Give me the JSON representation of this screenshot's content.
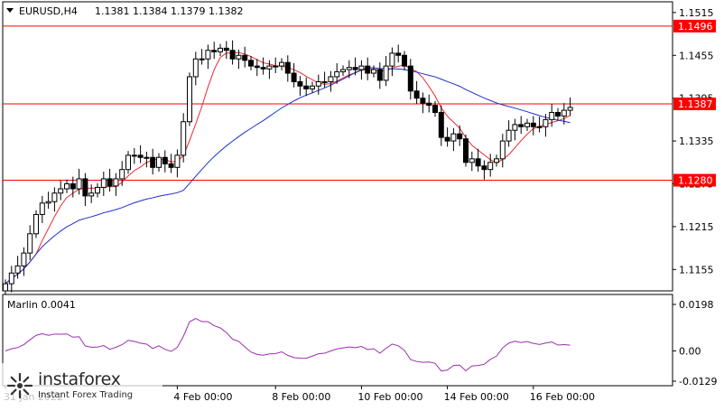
{
  "chart_header": {
    "symbol": "EURUSD,H4",
    "ohlc": "1.1381 1.1384 1.1379 1.1382"
  },
  "price_axis": {
    "ticks": [
      "1.1515",
      "1.1455",
      "1.1395",
      "1.1335",
      "1.1275",
      "1.1215",
      "1.1155"
    ],
    "labels": [
      {
        "text": "1.1496",
        "color": "#ff0000"
      },
      {
        "text": "1.1387",
        "color": "#ff0000"
      },
      {
        "text": "1.1280",
        "color": "#ff0000"
      }
    ]
  },
  "time_axis": {
    "labels": [
      "31 Jan 2022",
      "4 Feb 00:00",
      "8 Feb 00:00",
      "10 Feb 00:00",
      "14 Feb 00:00",
      "16 Feb 00:00"
    ]
  },
  "indicator": {
    "label": "Marlin 0.0041",
    "ticks": [
      "0.0198",
      "0.00",
      "-0.0129"
    ]
  },
  "levels": [
    {
      "price": 1.1496,
      "color": "#ff0000"
    },
    {
      "price": 1.1387,
      "color": "#ff0000"
    },
    {
      "price": 1.128,
      "color": "#ff0000"
    }
  ],
  "colors": {
    "ma_red": "#e8292f",
    "ma_blue": "#1c30c8",
    "marlin": "#9b2fae",
    "level": "#ff0000"
  },
  "watermark": {
    "brand": "instaforex",
    "tagline": "Instant Forex Trading"
  },
  "chart_data": {
    "type": "candlestick",
    "symbol": "EURUSD",
    "timeframe": "H4",
    "ylim": [
      1.1125,
      1.153
    ],
    "closes": [
      1.1135,
      1.115,
      1.116,
      1.1178,
      1.1205,
      1.1232,
      1.1248,
      1.125,
      1.1262,
      1.1268,
      1.1275,
      1.1268,
      1.1282,
      1.1258,
      1.1262,
      1.127,
      1.1282,
      1.1272,
      1.1282,
      1.1295,
      1.1315,
      1.1315,
      1.1312,
      1.1312,
      1.1298,
      1.1312,
      1.1303,
      1.1298,
      1.1315,
      1.1362,
      1.1425,
      1.145,
      1.145,
      1.1462,
      1.146,
      1.1465,
      1.1462,
      1.145,
      1.1455,
      1.1448,
      1.144,
      1.1438,
      1.1436,
      1.144,
      1.144,
      1.1445,
      1.143,
      1.1418,
      1.1412,
      1.1408,
      1.1412,
      1.1418,
      1.1418,
      1.1425,
      1.1432,
      1.1435,
      1.1438,
      1.1435,
      1.144,
      1.143,
      1.1435,
      1.142,
      1.144,
      1.1458,
      1.1455,
      1.144,
      1.1405,
      1.1395,
      1.1388,
      1.1385,
      1.1375,
      1.134,
      1.1335,
      1.1345,
      1.1338,
      1.1305,
      1.131,
      1.13,
      1.1295,
      1.1305,
      1.131,
      1.1335,
      1.135,
      1.1358,
      1.1355,
      1.136,
      1.1355,
      1.1355,
      1.1365,
      1.1375,
      1.137,
      1.1378,
      1.1382
    ]
  }
}
